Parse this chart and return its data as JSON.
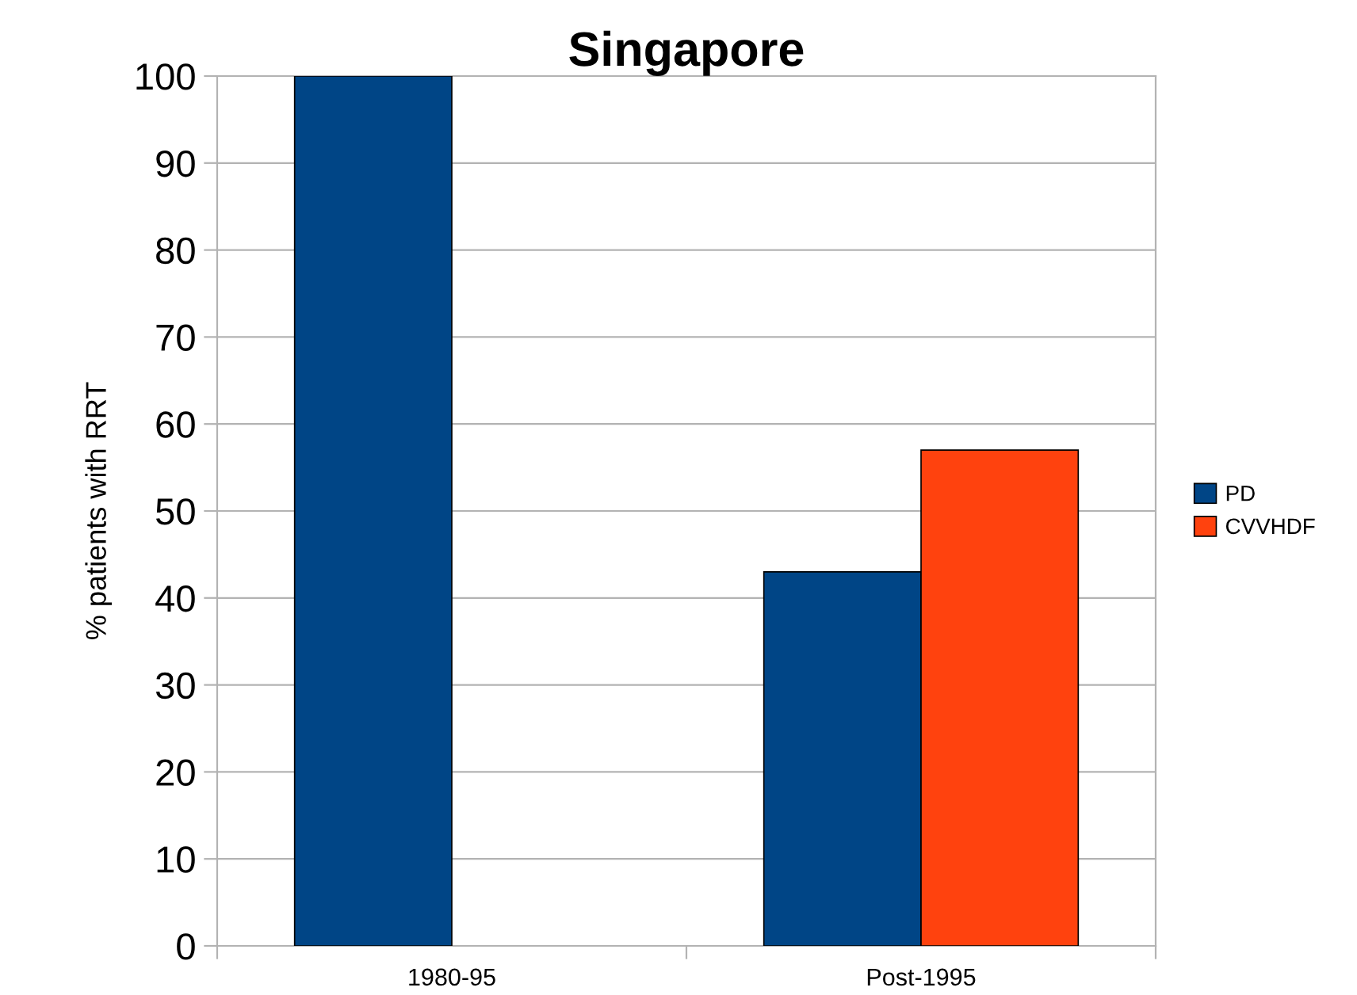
{
  "chart_data": {
    "type": "bar",
    "title": "Singapore",
    "ylabel": "% patients with RRT",
    "categories": [
      "1980-95",
      "Post-1995"
    ],
    "series": [
      {
        "name": "PD",
        "color": "#004586",
        "values": [
          100,
          43
        ]
      },
      {
        "name": "CVVHDF",
        "color": "#ff420e",
        "values": [
          null,
          57
        ]
      }
    ],
    "ylim": [
      0,
      100
    ],
    "yticks": [
      0,
      10,
      20,
      30,
      40,
      50,
      60,
      70,
      80,
      90,
      100
    ],
    "grid": "y",
    "legend": "right"
  }
}
